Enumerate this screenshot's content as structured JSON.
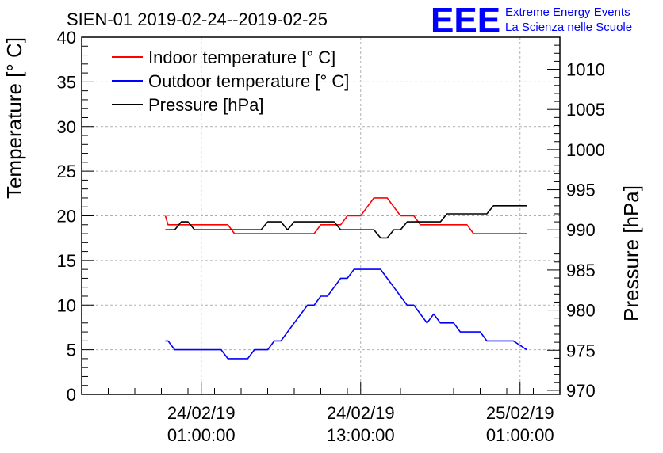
{
  "chart_data": {
    "type": "line",
    "title": "SIEN-01 2019-02-24--2019-02-25",
    "ylabel": "Temperature [° C]",
    "y2label": "Pressure [hPa]",
    "ylim": [
      0,
      40
    ],
    "y2lim": [
      969.5,
      1014
    ],
    "xlim_hours": [
      -9,
      27
    ],
    "yticks": [
      "0",
      "5",
      "10",
      "15",
      "20",
      "25",
      "30",
      "35",
      "40"
    ],
    "y2ticks": [
      "970",
      "975",
      "980",
      "985",
      "990",
      "995",
      "1000",
      "1005",
      "1010"
    ],
    "xticks": [
      {
        "hour": 0,
        "line1": "24/02/19",
        "line2": "01:00:00"
      },
      {
        "hour": 12,
        "line1": "24/02/19",
        "line2": "13:00:00"
      },
      {
        "hour": 24,
        "line1": "25/02/19",
        "line2": "01:00:00"
      }
    ],
    "grid": true,
    "legend_position": "top-left",
    "series": [
      {
        "name": "Indoor temperature [° C]",
        "color": "#ff0000",
        "axis": "left",
        "x": [
          -2.7,
          -2.5,
          -2,
          -1.5,
          -1,
          -0.5,
          0,
          0.5,
          1,
          1.5,
          2,
          2.5,
          3,
          3.5,
          4,
          4.5,
          5,
          5.5,
          6,
          6.5,
          7,
          7.5,
          8,
          8.5,
          9,
          9.5,
          10,
          10.5,
          11,
          11.5,
          12,
          12.5,
          13,
          13.5,
          14,
          14.5,
          15,
          15.5,
          16,
          16.5,
          17,
          17.5,
          18,
          18.5,
          19,
          19.5,
          20,
          20.5,
          21,
          21.5,
          22,
          22.5,
          23,
          23.5,
          24,
          24.5
        ],
        "y": [
          20,
          19,
          19,
          19,
          19,
          19,
          19,
          19,
          19,
          19,
          19,
          18,
          18,
          18,
          18,
          18,
          18,
          18,
          18,
          18,
          18,
          18,
          18,
          18,
          19,
          19,
          19,
          19,
          20,
          20,
          20,
          21,
          22,
          22,
          22,
          21,
          20,
          20,
          20,
          19,
          19,
          19,
          19,
          19,
          19,
          19,
          19,
          18,
          18,
          18,
          18,
          18,
          18,
          18,
          18,
          18
        ]
      },
      {
        "name": "Outdoor temperature [° C]",
        "color": "#0000ff",
        "axis": "left",
        "x": [
          -2.7,
          -2.5,
          -2,
          -1.5,
          -1,
          -0.5,
          0,
          0.5,
          1,
          1.5,
          2,
          2.5,
          3,
          3.5,
          4,
          4.5,
          5,
          5.5,
          6,
          6.5,
          7,
          7.5,
          8,
          8.5,
          9,
          9.5,
          10,
          10.5,
          11,
          11.5,
          12,
          12.5,
          13,
          13.5,
          14,
          14.5,
          15,
          15.5,
          16,
          16.5,
          17,
          17.5,
          18,
          18.5,
          19,
          19.5,
          20,
          20.5,
          21,
          21.5,
          22,
          22.5,
          23,
          23.5,
          24,
          24.5
        ],
        "y": [
          6,
          6,
          5,
          5,
          5,
          5,
          5,
          5,
          5,
          5,
          4,
          4,
          4,
          4,
          5,
          5,
          5,
          6,
          6,
          7,
          8,
          9,
          10,
          10,
          11,
          11,
          12,
          13,
          13,
          14,
          14,
          14,
          14,
          14,
          13,
          12,
          11,
          10,
          10,
          9,
          8,
          9,
          8,
          8,
          8,
          7,
          7,
          7,
          7,
          6,
          6,
          6,
          6,
          6,
          5.5,
          5
        ]
      },
      {
        "name": "Pressure [hPa]",
        "color": "#000000",
        "axis": "right",
        "x": [
          -2.7,
          -2.5,
          -2,
          -1.5,
          -1,
          -0.5,
          0,
          0.5,
          1,
          1.5,
          2,
          2.5,
          3,
          3.5,
          4,
          4.5,
          5,
          5.5,
          6,
          6.5,
          7,
          7.5,
          8,
          8.5,
          9,
          9.5,
          10,
          10.5,
          11,
          11.5,
          12,
          12.5,
          13,
          13.5,
          14,
          14.5,
          15,
          15.5,
          16,
          16.5,
          17,
          17.5,
          18,
          18.5,
          19,
          19.5,
          20,
          20.5,
          21,
          21.5,
          22,
          22.5,
          23,
          23.5,
          24,
          24.5
        ],
        "y": [
          990,
          990,
          990,
          991,
          991,
          990,
          990,
          990,
          990,
          990,
          990,
          990,
          990,
          990,
          990,
          990,
          991,
          991,
          991,
          990,
          991,
          991,
          991,
          991,
          991,
          991,
          991,
          990,
          990,
          990,
          990,
          990,
          990,
          989,
          989,
          990,
          990,
          991,
          991,
          991,
          991,
          991,
          991,
          992,
          992,
          992,
          992,
          992,
          992,
          992,
          993,
          993,
          993,
          993,
          993,
          993
        ]
      }
    ]
  },
  "brand": {
    "logo": "EEE",
    "line1": "Extreme Energy Events",
    "line2": "La Scienza nelle Scuole",
    "color": "#0000ff"
  }
}
